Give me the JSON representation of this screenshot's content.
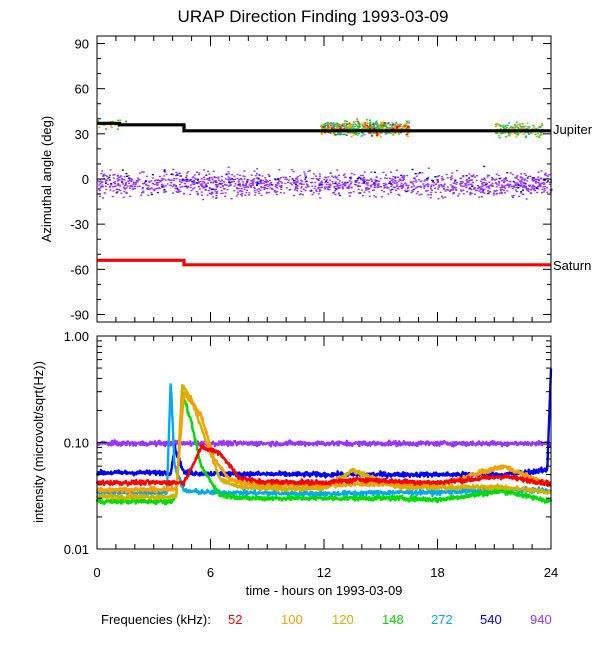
{
  "chart_data": [
    {
      "type": "scatter",
      "title": "URAP Direction Finding  1993-03-09",
      "ylabel": "Azimuthal angle (deg)",
      "xlim": [
        0,
        24
      ],
      "ylim": [
        -95,
        95
      ],
      "yticks": [
        90,
        60,
        30,
        0,
        -30,
        -60,
        -90
      ],
      "yticklabels": [
        "90",
        "60",
        "30",
        "0",
        "-30",
        "-60",
        "-90"
      ],
      "reference_lines": [
        {
          "name": "Jupiter",
          "color": "#000000",
          "steps": [
            {
              "x0": 0,
              "x1": 1.2,
              "y": 37
            },
            {
              "x0": 1.2,
              "x1": 4.6,
              "y": 36
            },
            {
              "x0": 4.6,
              "x1": 24,
              "y": 32
            }
          ]
        },
        {
          "name": "Saturn",
          "color": "#ff0000",
          "steps": [
            {
              "x0": 0,
              "x1": 4.6,
              "y": -54
            },
            {
              "x0": 4.6,
              "x1": 24,
              "y": -57
            }
          ]
        }
      ],
      "clusters": [
        {
          "name": "940 kHz scatter",
          "color": "#9933ff",
          "x_range": [
            0,
            24
          ],
          "center": -3,
          "spread": 7,
          "points": 1400
        },
        {
          "name": "540 kHz scatter",
          "color": "#0000ff",
          "x_range": [
            0,
            24
          ],
          "center": -2,
          "spread": 8,
          "points": 120
        },
        {
          "name": "Jupiter burst scatter",
          "colors": [
            "#00dd00",
            "#f5a000",
            "#d4b000",
            "#00aaee",
            "#ff0000"
          ],
          "x_range": [
            11.8,
            16.5
          ],
          "center": 34,
          "spread": 4,
          "points": 650
        },
        {
          "name": "Jupiter late scatter",
          "colors": [
            "#00dd00",
            "#f5a000",
            "#d4b000",
            "#00aaee"
          ],
          "x_range": [
            21,
            23.5
          ],
          "center": 33,
          "spread": 4,
          "points": 200
        },
        {
          "name": "early scatter",
          "colors": [
            "#00dd00",
            "#f5a000"
          ],
          "x_range": [
            0,
            1.5
          ],
          "center": 37,
          "spread": 3,
          "points": 25
        }
      ]
    },
    {
      "type": "line",
      "ylabel": "intensity (microvolt/sqrt(Hz))",
      "xlabel": "time - hours on 1993-03-09",
      "xlim": [
        0,
        24
      ],
      "ylim": [
        0.01,
        1.0
      ],
      "yscale": "log",
      "yticks": [
        1.0,
        0.1,
        0.01
      ],
      "yticklabels": [
        "1.00",
        "0.10",
        "0.01"
      ],
      "xticks": [
        0,
        6,
        12,
        18,
        24
      ],
      "xticklabels": [
        "0",
        "6",
        "12",
        "18",
        "24"
      ],
      "series": [
        {
          "name": "940",
          "color": "#9933ff",
          "x": [
            0,
            6,
            12,
            18,
            24
          ],
          "y": [
            0.098,
            0.098,
            0.098,
            0.098,
            0.098
          ]
        },
        {
          "name": "540",
          "color": "#0000ff",
          "x": [
            0,
            3.9,
            4.1,
            4.6,
            6,
            12,
            18,
            21.5,
            23.8,
            24
          ],
          "y": [
            0.052,
            0.052,
            0.09,
            0.052,
            0.051,
            0.05,
            0.05,
            0.05,
            0.055,
            0.5
          ]
        },
        {
          "name": "272",
          "color": "#00aaee",
          "x": [
            0,
            3.7,
            3.9,
            4.1,
            4.6,
            6,
            12,
            16,
            18,
            21.5,
            24
          ],
          "y": [
            0.034,
            0.034,
            0.38,
            0.06,
            0.035,
            0.034,
            0.033,
            0.034,
            0.034,
            0.036,
            0.035
          ]
        },
        {
          "name": "148",
          "color": "#00dd00",
          "x": [
            0,
            3.9,
            4.2,
            4.5,
            5,
            5.5,
            6.5,
            8,
            12,
            16,
            18,
            21.5,
            24
          ],
          "y": [
            0.028,
            0.028,
            0.032,
            0.3,
            0.15,
            0.06,
            0.032,
            0.03,
            0.03,
            0.03,
            0.029,
            0.035,
            0.028
          ]
        },
        {
          "name": "120",
          "color": "#d4b000",
          "x": [
            0,
            4.2,
            4.5,
            5,
            5.8,
            6.5,
            7.5,
            9,
            12,
            13.5,
            16,
            21.5,
            24
          ],
          "y": [
            0.031,
            0.031,
            0.35,
            0.25,
            0.1,
            0.045,
            0.038,
            0.037,
            0.037,
            0.055,
            0.038,
            0.038,
            0.034
          ]
        },
        {
          "name": "100",
          "color": "#f5a000",
          "x": [
            0,
            4.2,
            4.6,
            5.5,
            6.2,
            7,
            8,
            12,
            16,
            18,
            21.5,
            24
          ],
          "y": [
            0.036,
            0.036,
            0.3,
            0.18,
            0.07,
            0.045,
            0.041,
            0.04,
            0.041,
            0.04,
            0.06,
            0.039
          ]
        },
        {
          "name": "52",
          "color": "#ff0000",
          "x": [
            0,
            4.6,
            5.5,
            6.5,
            7.5,
            8.5,
            12,
            14,
            16,
            18,
            21.5,
            24
          ],
          "y": [
            0.042,
            0.042,
            0.09,
            0.08,
            0.047,
            0.043,
            0.042,
            0.045,
            0.043,
            0.042,
            0.048,
            0.041
          ]
        }
      ]
    }
  ],
  "legend": {
    "title": "Frequencies (kHz):",
    "items": [
      {
        "label": "52",
        "color": "#ff0000"
      },
      {
        "label": "100",
        "color": "#f5a000"
      },
      {
        "label": "120",
        "color": "#d4b000"
      },
      {
        "label": "148",
        "color": "#00dd00"
      },
      {
        "label": "272",
        "color": "#00aaee"
      },
      {
        "label": "540",
        "color": "#0000ff"
      },
      {
        "label": "940",
        "color": "#9933ff"
      }
    ]
  }
}
